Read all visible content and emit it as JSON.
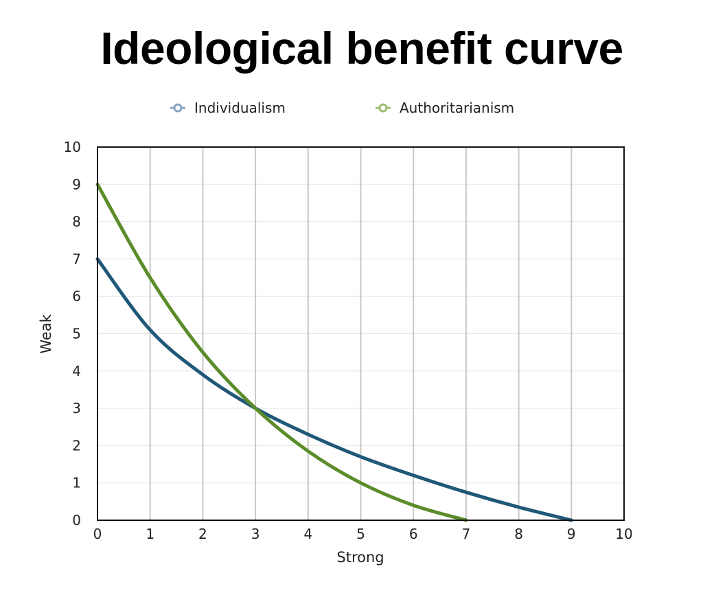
{
  "chart_data": {
    "type": "line",
    "title": "Ideological benefit curve",
    "xlabel": "Strong",
    "ylabel": "Weak",
    "xlim": [
      0,
      10
    ],
    "ylim": [
      0,
      10
    ],
    "x_ticks": [
      "0",
      "1",
      "2",
      "3",
      "4",
      "5",
      "6",
      "7",
      "8",
      "9",
      "10"
    ],
    "y_ticks": [
      "0",
      "1",
      "2",
      "3",
      "4",
      "5",
      "6",
      "7",
      "8",
      "9",
      "10"
    ],
    "grid": "vertical",
    "legend_position": "top",
    "series": [
      {
        "name": "Individualism",
        "color": "#1f5878",
        "legend_color": "#8aa4c4",
        "x": [
          0,
          1,
          2,
          3,
          4,
          5,
          6,
          7,
          8,
          9
        ],
        "y": [
          7.0,
          5.1,
          3.9,
          3.0,
          2.3,
          1.7,
          1.2,
          0.75,
          0.35,
          0.0
        ]
      },
      {
        "name": "Authoritarianism",
        "color": "#5b8c2a",
        "legend_color": "#9bbf6e",
        "x": [
          0,
          1,
          2,
          3,
          4,
          5,
          6,
          7
        ],
        "y": [
          9.0,
          6.5,
          4.5,
          3.0,
          1.85,
          1.0,
          0.4,
          0.0
        ]
      }
    ]
  }
}
